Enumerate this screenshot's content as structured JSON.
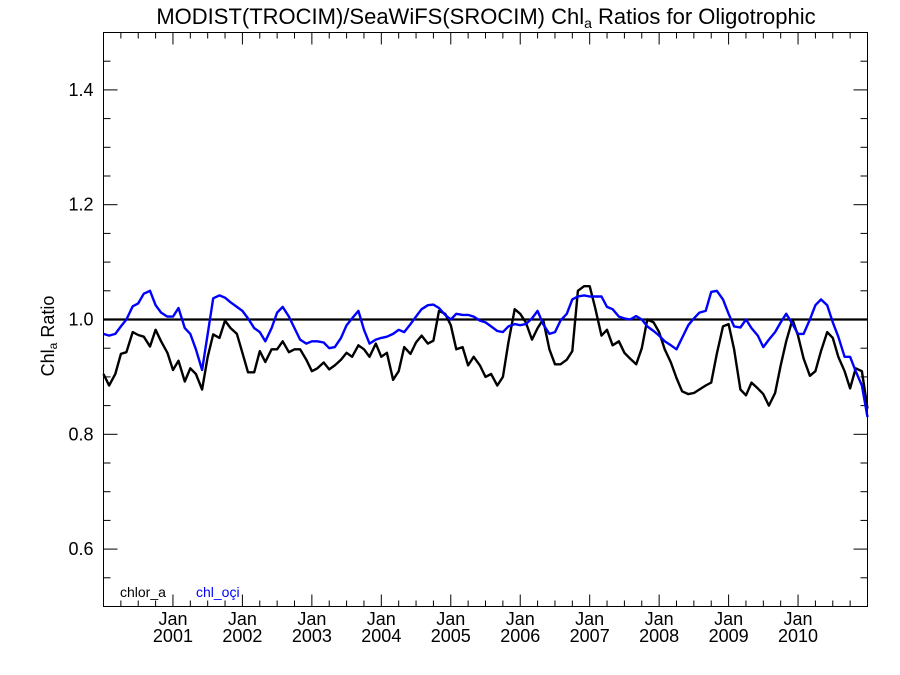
{
  "chart_data": {
    "type": "line",
    "title": {
      "main": "MODIST(TROCIM)/SeaWiFS(SROCIM)  Chl",
      "sub": "a",
      "rest": " Ratios for Oligotrophic"
    },
    "ylabel": {
      "main": "Chl",
      "sub": "a",
      "rest": " Ratio"
    },
    "ylim": [
      0.5,
      1.5
    ],
    "xlim": [
      2000.0,
      2011.0
    ],
    "yticks": [
      "0.6",
      "0.8",
      "1.0",
      "1.2",
      "1.4"
    ],
    "xticks": [
      {
        "month": "Jan",
        "year": "2001"
      },
      {
        "month": "Jan",
        "year": "2002"
      },
      {
        "month": "Jan",
        "year": "2003"
      },
      {
        "month": "Jan",
        "year": "2004"
      },
      {
        "month": "Jan",
        "year": "2005"
      },
      {
        "month": "Jan",
        "year": "2006"
      },
      {
        "month": "Jan",
        "year": "2007"
      },
      {
        "month": "Jan",
        "year": "2008"
      },
      {
        "month": "Jan",
        "year": "2009"
      },
      {
        "month": "Jan",
        "year": "2010"
      }
    ],
    "reference_line": 1.0,
    "series": [
      {
        "name": "chlor_a",
        "color": "#000000",
        "points": [
          [
            2000.0,
            0.905
          ],
          [
            2000.08,
            0.885
          ],
          [
            2000.17,
            0.905
          ],
          [
            2000.25,
            0.94
          ],
          [
            2000.33,
            0.943
          ],
          [
            2000.42,
            0.978
          ],
          [
            2000.5,
            0.973
          ],
          [
            2000.58,
            0.97
          ],
          [
            2000.67,
            0.953
          ],
          [
            2000.75,
            0.982
          ],
          [
            2000.83,
            0.962
          ],
          [
            2000.92,
            0.942
          ],
          [
            2001.0,
            0.912
          ],
          [
            2001.08,
            0.928
          ],
          [
            2001.17,
            0.892
          ],
          [
            2001.25,
            0.915
          ],
          [
            2001.33,
            0.905
          ],
          [
            2001.42,
            0.878
          ],
          [
            2001.5,
            0.935
          ],
          [
            2001.58,
            0.974
          ],
          [
            2001.67,
            0.968
          ],
          [
            2001.75,
            0.998
          ],
          [
            2001.83,
            0.985
          ],
          [
            2001.92,
            0.975
          ],
          [
            2002.0,
            0.942
          ],
          [
            2002.08,
            0.908
          ],
          [
            2002.17,
            0.908
          ],
          [
            2002.25,
            0.945
          ],
          [
            2002.33,
            0.926
          ],
          [
            2002.42,
            0.948
          ],
          [
            2002.5,
            0.948
          ],
          [
            2002.58,
            0.962
          ],
          [
            2002.67,
            0.943
          ],
          [
            2002.75,
            0.948
          ],
          [
            2002.83,
            0.948
          ],
          [
            2002.92,
            0.93
          ],
          [
            2003.0,
            0.91
          ],
          [
            2003.08,
            0.915
          ],
          [
            2003.17,
            0.925
          ],
          [
            2003.25,
            0.913
          ],
          [
            2003.33,
            0.92
          ],
          [
            2003.42,
            0.93
          ],
          [
            2003.5,
            0.942
          ],
          [
            2003.58,
            0.935
          ],
          [
            2003.67,
            0.955
          ],
          [
            2003.75,
            0.948
          ],
          [
            2003.83,
            0.935
          ],
          [
            2003.92,
            0.958
          ],
          [
            2004.0,
            0.935
          ],
          [
            2004.08,
            0.942
          ],
          [
            2004.17,
            0.895
          ],
          [
            2004.25,
            0.91
          ],
          [
            2004.33,
            0.952
          ],
          [
            2004.42,
            0.94
          ],
          [
            2004.5,
            0.96
          ],
          [
            2004.58,
            0.972
          ],
          [
            2004.67,
            0.958
          ],
          [
            2004.75,
            0.963
          ],
          [
            2004.83,
            1.015
          ],
          [
            2004.92,
            1.01
          ],
          [
            2005.0,
            0.99
          ],
          [
            2005.08,
            0.948
          ],
          [
            2005.17,
            0.952
          ],
          [
            2005.25,
            0.92
          ],
          [
            2005.33,
            0.935
          ],
          [
            2005.42,
            0.92
          ],
          [
            2005.5,
            0.9
          ],
          [
            2005.58,
            0.905
          ],
          [
            2005.67,
            0.885
          ],
          [
            2005.75,
            0.9
          ],
          [
            2005.83,
            0.96
          ],
          [
            2005.92,
            1.018
          ],
          [
            2006.0,
            1.01
          ],
          [
            2006.08,
            0.995
          ],
          [
            2006.17,
            0.965
          ],
          [
            2006.25,
            0.985
          ],
          [
            2006.33,
            1.0
          ],
          [
            2006.42,
            0.948
          ],
          [
            2006.5,
            0.922
          ],
          [
            2006.58,
            0.922
          ],
          [
            2006.67,
            0.93
          ],
          [
            2006.75,
            0.945
          ],
          [
            2006.83,
            1.05
          ],
          [
            2006.92,
            1.058
          ],
          [
            2007.0,
            1.058
          ],
          [
            2007.08,
            1.02
          ],
          [
            2007.17,
            0.972
          ],
          [
            2007.25,
            0.982
          ],
          [
            2007.33,
            0.955
          ],
          [
            2007.42,
            0.962
          ],
          [
            2007.5,
            0.942
          ],
          [
            2007.58,
            0.932
          ],
          [
            2007.67,
            0.922
          ],
          [
            2007.75,
            0.95
          ],
          [
            2007.83,
            1.0
          ],
          [
            2007.92,
            0.995
          ],
          [
            2008.0,
            0.978
          ],
          [
            2008.08,
            0.948
          ],
          [
            2008.17,
            0.925
          ],
          [
            2008.25,
            0.898
          ],
          [
            2008.33,
            0.875
          ],
          [
            2008.42,
            0.87
          ],
          [
            2008.5,
            0.872
          ],
          [
            2008.58,
            0.878
          ],
          [
            2008.67,
            0.885
          ],
          [
            2008.75,
            0.89
          ],
          [
            2008.83,
            0.94
          ],
          [
            2008.92,
            0.988
          ],
          [
            2009.0,
            0.992
          ],
          [
            2009.08,
            0.948
          ],
          [
            2009.17,
            0.878
          ],
          [
            2009.25,
            0.868
          ],
          [
            2009.33,
            0.89
          ],
          [
            2009.42,
            0.88
          ],
          [
            2009.5,
            0.87
          ],
          [
            2009.58,
            0.85
          ],
          [
            2009.67,
            0.872
          ],
          [
            2009.75,
            0.92
          ],
          [
            2009.83,
            0.962
          ],
          [
            2009.92,
            1.0
          ],
          [
            2010.0,
            0.972
          ],
          [
            2010.08,
            0.932
          ],
          [
            2010.17,
            0.902
          ],
          [
            2010.25,
            0.91
          ],
          [
            2010.33,
            0.945
          ],
          [
            2010.42,
            0.978
          ],
          [
            2010.5,
            0.968
          ],
          [
            2010.58,
            0.935
          ],
          [
            2010.67,
            0.91
          ],
          [
            2010.75,
            0.88
          ],
          [
            2010.83,
            0.915
          ],
          [
            2010.92,
            0.91
          ],
          [
            2011.0,
            0.845
          ]
        ]
      },
      {
        "name": "chl_oçi",
        "color": "#0000ff",
        "points": [
          [
            2000.0,
            0.975
          ],
          [
            2000.08,
            0.972
          ],
          [
            2000.17,
            0.975
          ],
          [
            2000.25,
            0.988
          ],
          [
            2000.33,
            1.0
          ],
          [
            2000.42,
            1.023
          ],
          [
            2000.5,
            1.028
          ],
          [
            2000.58,
            1.045
          ],
          [
            2000.67,
            1.05
          ],
          [
            2000.75,
            1.025
          ],
          [
            2000.83,
            1.012
          ],
          [
            2000.92,
            1.005
          ],
          [
            2001.0,
            1.005
          ],
          [
            2001.08,
            1.02
          ],
          [
            2001.17,
            0.985
          ],
          [
            2001.25,
            0.975
          ],
          [
            2001.33,
            0.948
          ],
          [
            2001.42,
            0.912
          ],
          [
            2001.5,
            0.975
          ],
          [
            2001.58,
            1.037
          ],
          [
            2001.67,
            1.042
          ],
          [
            2001.75,
            1.038
          ],
          [
            2001.83,
            1.03
          ],
          [
            2001.92,
            1.022
          ],
          [
            2002.0,
            1.015
          ],
          [
            2002.08,
            1.002
          ],
          [
            2002.17,
            0.985
          ],
          [
            2002.25,
            0.978
          ],
          [
            2002.33,
            0.962
          ],
          [
            2002.42,
            0.985
          ],
          [
            2002.5,
            1.012
          ],
          [
            2002.58,
            1.022
          ],
          [
            2002.67,
            1.005
          ],
          [
            2002.75,
            0.985
          ],
          [
            2002.83,
            0.965
          ],
          [
            2002.92,
            0.958
          ],
          [
            2003.0,
            0.962
          ],
          [
            2003.08,
            0.962
          ],
          [
            2003.17,
            0.96
          ],
          [
            2003.25,
            0.95
          ],
          [
            2003.33,
            0.952
          ],
          [
            2003.42,
            0.968
          ],
          [
            2003.5,
            0.99
          ],
          [
            2003.58,
            1.002
          ],
          [
            2003.67,
            1.015
          ],
          [
            2003.75,
            0.982
          ],
          [
            2003.83,
            0.958
          ],
          [
            2003.92,
            0.965
          ],
          [
            2004.0,
            0.968
          ],
          [
            2004.08,
            0.97
          ],
          [
            2004.17,
            0.975
          ],
          [
            2004.25,
            0.982
          ],
          [
            2004.33,
            0.978
          ],
          [
            2004.42,
            0.992
          ],
          [
            2004.5,
            1.005
          ],
          [
            2004.58,
            1.018
          ],
          [
            2004.67,
            1.025
          ],
          [
            2004.75,
            1.026
          ],
          [
            2004.83,
            1.02
          ],
          [
            2004.92,
            1.008
          ],
          [
            2005.0,
            1.0
          ],
          [
            2005.08,
            1.01
          ],
          [
            2005.17,
            1.008
          ],
          [
            2005.25,
            1.008
          ],
          [
            2005.33,
            1.005
          ],
          [
            2005.42,
            0.998
          ],
          [
            2005.5,
            0.995
          ],
          [
            2005.58,
            0.988
          ],
          [
            2005.67,
            0.98
          ],
          [
            2005.75,
            0.978
          ],
          [
            2005.83,
            0.988
          ],
          [
            2005.92,
            0.992
          ],
          [
            2006.0,
            0.99
          ],
          [
            2006.08,
            0.992
          ],
          [
            2006.17,
            1.002
          ],
          [
            2006.25,
            1.015
          ],
          [
            2006.33,
            0.992
          ],
          [
            2006.42,
            0.975
          ],
          [
            2006.5,
            0.978
          ],
          [
            2006.58,
            0.998
          ],
          [
            2006.67,
            1.01
          ],
          [
            2006.75,
            1.035
          ],
          [
            2006.83,
            1.04
          ],
          [
            2006.92,
            1.042
          ],
          [
            2007.0,
            1.04
          ],
          [
            2007.08,
            1.04
          ],
          [
            2007.17,
            1.04
          ],
          [
            2007.25,
            1.022
          ],
          [
            2007.33,
            1.018
          ],
          [
            2007.42,
            1.005
          ],
          [
            2007.5,
            1.002
          ],
          [
            2007.58,
            1.0
          ],
          [
            2007.67,
            1.006
          ],
          [
            2007.75,
            1.0
          ],
          [
            2007.83,
            0.988
          ],
          [
            2007.92,
            0.98
          ],
          [
            2008.0,
            0.972
          ],
          [
            2008.08,
            0.962
          ],
          [
            2008.17,
            0.955
          ],
          [
            2008.25,
            0.948
          ],
          [
            2008.33,
            0.968
          ],
          [
            2008.42,
            0.99
          ],
          [
            2008.5,
            1.002
          ],
          [
            2008.58,
            1.012
          ],
          [
            2008.67,
            1.015
          ],
          [
            2008.75,
            1.048
          ],
          [
            2008.83,
            1.05
          ],
          [
            2008.92,
            1.035
          ],
          [
            2009.0,
            1.01
          ],
          [
            2009.08,
            0.988
          ],
          [
            2009.17,
            0.986
          ],
          [
            2009.25,
            1.0
          ],
          [
            2009.33,
            0.985
          ],
          [
            2009.42,
            0.972
          ],
          [
            2009.5,
            0.952
          ],
          [
            2009.58,
            0.965
          ],
          [
            2009.67,
            0.978
          ],
          [
            2009.75,
            0.995
          ],
          [
            2009.83,
            1.01
          ],
          [
            2009.92,
            0.992
          ],
          [
            2010.0,
            0.975
          ],
          [
            2010.08,
            0.975
          ],
          [
            2010.17,
            1.0
          ],
          [
            2010.25,
            1.025
          ],
          [
            2010.33,
            1.035
          ],
          [
            2010.42,
            1.025
          ],
          [
            2010.5,
            0.995
          ],
          [
            2010.58,
            0.97
          ],
          [
            2010.67,
            0.935
          ],
          [
            2010.75,
            0.935
          ],
          [
            2010.83,
            0.91
          ],
          [
            2010.92,
            0.885
          ],
          [
            2011.0,
            0.83
          ]
        ]
      }
    ]
  }
}
